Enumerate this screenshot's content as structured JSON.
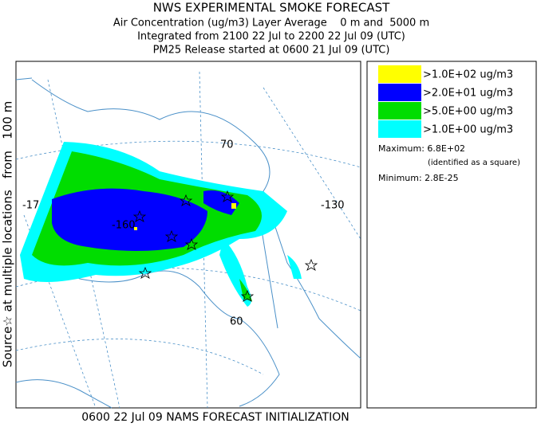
{
  "header": {
    "title": "NWS EXPERIMENTAL SMOKE FORECAST",
    "lines": [
      "Air Concentration (ug/m3) Layer Average    0 m and  5000 m",
      "Integrated from 2100 22 Jul to 2200 22 Jul 09 (UTC)",
      "PM25 Release started at 0600 21 Jul 09 (UTC)"
    ]
  },
  "side_label": "Source☆ at multiple locations   from   100 m",
  "footer": "0600 22 Jul 09 NAMS FORECAST INITIALIZATION",
  "map": {
    "labels": [
      "70",
      "-130",
      "-160",
      "-17",
      "60"
    ]
  },
  "legend": {
    "items": [
      {
        "label": ">1.0E+02 ug/m3",
        "color": "#ffff00"
      },
      {
        "label": ">2.0E+01 ug/m3",
        "color": "#0000ff"
      },
      {
        "label": ">5.0E+00 ug/m3",
        "color": "#00dd00"
      },
      {
        "label": ">1.0E+00 ug/m3",
        "color": "#00ffff"
      }
    ],
    "maximum": "Maximum: 6.8E+02",
    "maximum_note": "(identified as a square)",
    "minimum": "Minimum: 2.8E-25"
  }
}
